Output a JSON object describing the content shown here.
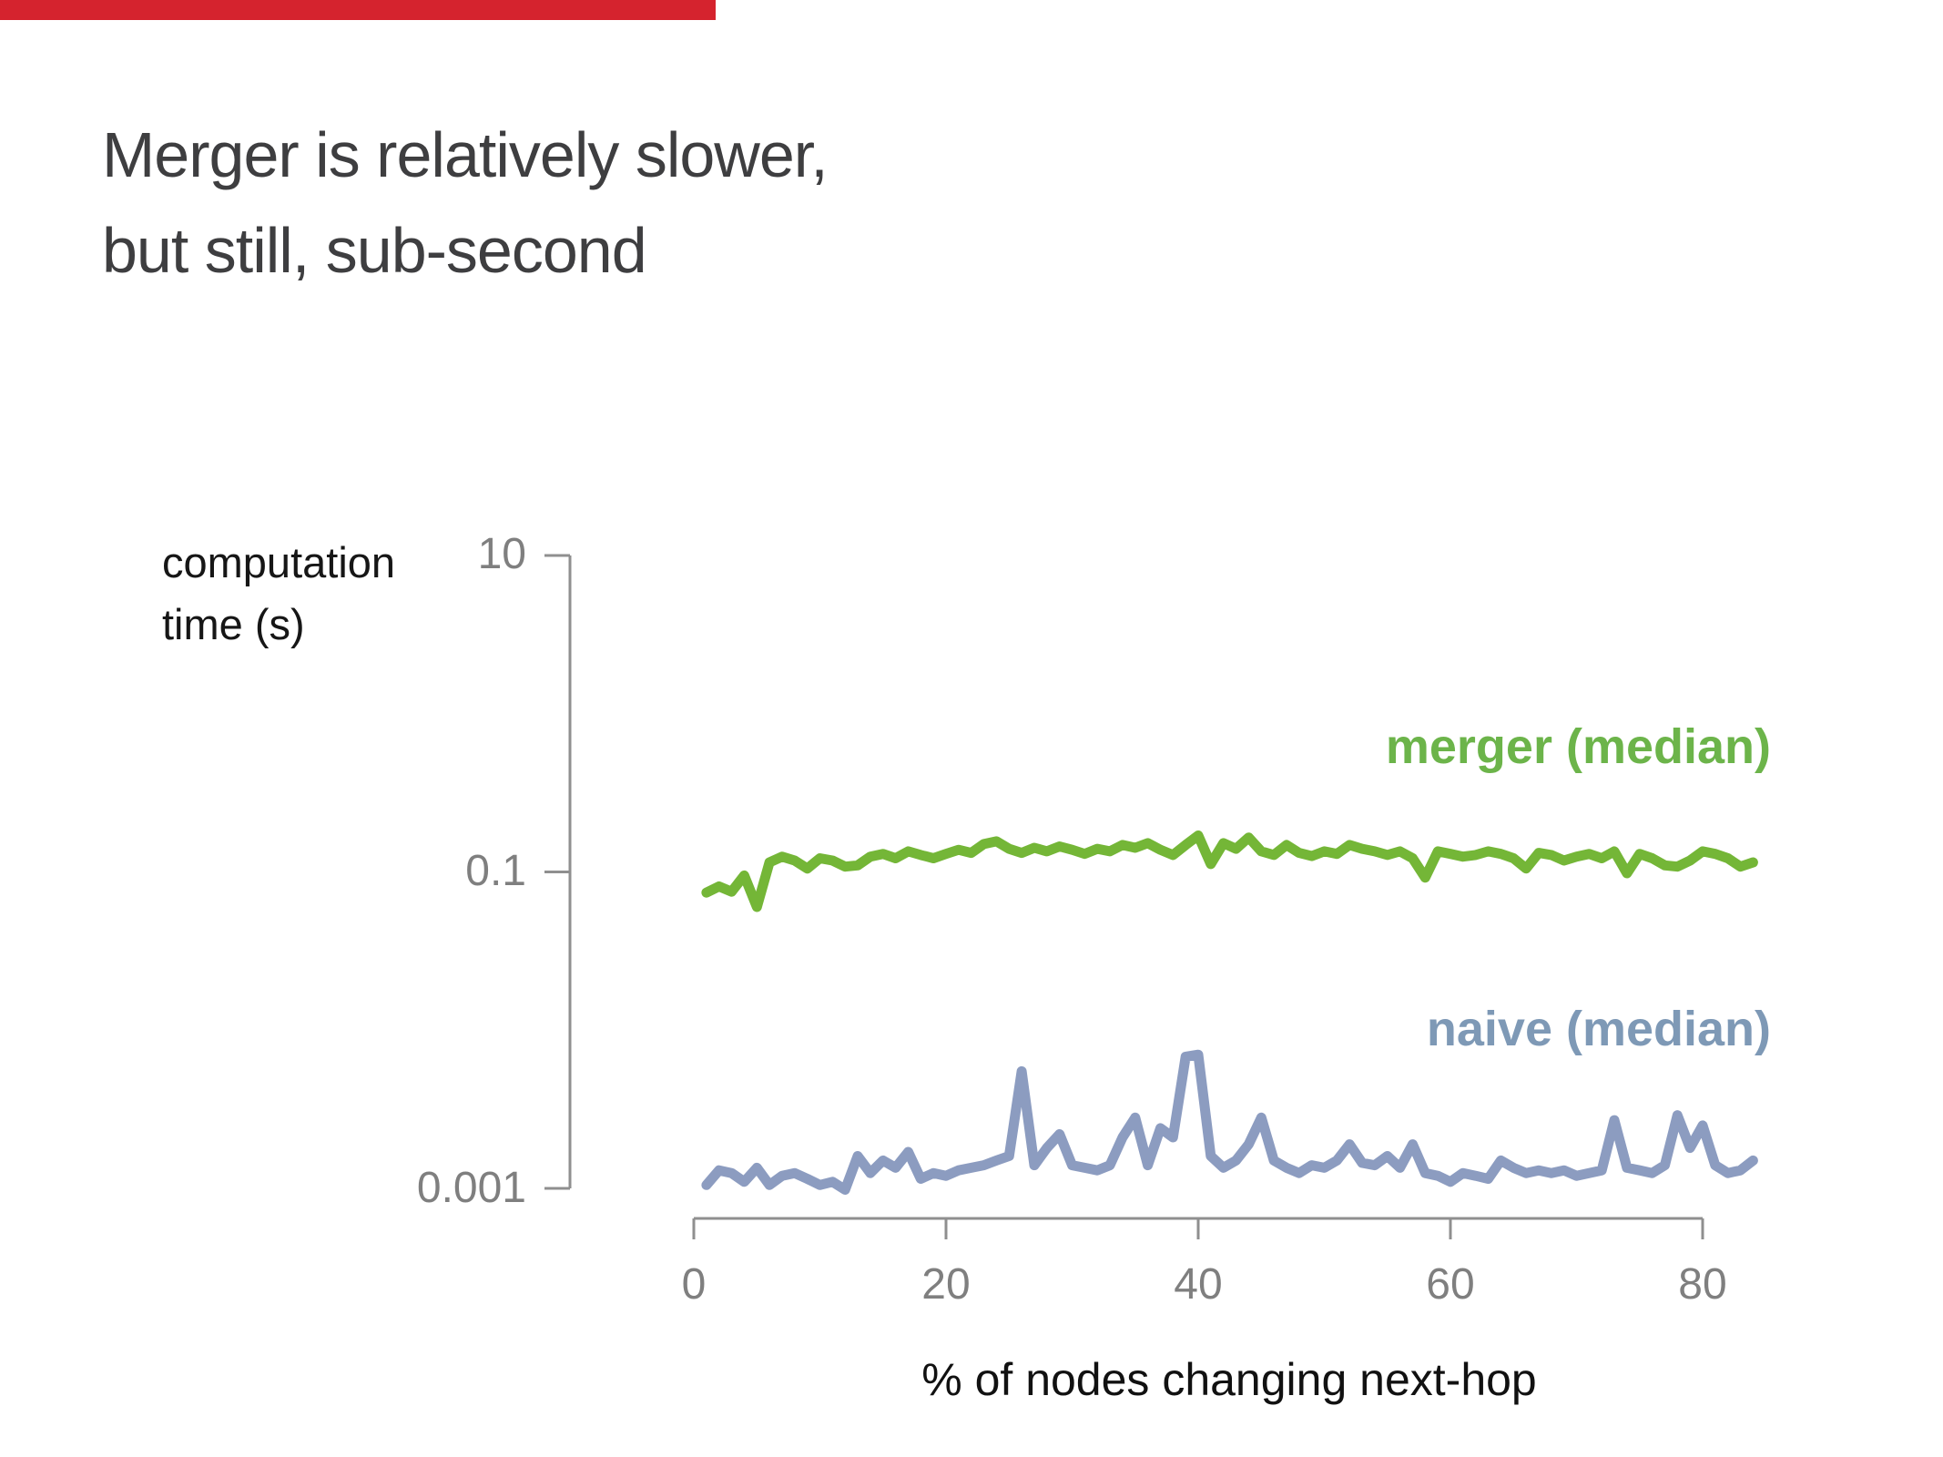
{
  "slide": {
    "title_line1": "Merger is relatively slower,",
    "title_line2": "but still, sub-second",
    "progress_bar_color": "#d5232e"
  },
  "colors": {
    "background": "#ffffff",
    "title_text": "#3e3e40",
    "axis_gray": "#8f8f8f",
    "tick_label_gray": "#7f7f7f",
    "merger_green": "#74b637",
    "merger_label_green": "#6cb44a",
    "naive_blue": "#8c9cc0",
    "naive_label_blue": "#7e99b6"
  },
  "chart_data": {
    "type": "line",
    "title": "",
    "xlabel": "% of nodes changing next-hop",
    "ylabel_line1": "computation",
    "ylabel_line2": "time (s)",
    "yscale": "log",
    "grid": false,
    "legend_position": "inline-right-above-each-line",
    "xlim": [
      0,
      80
    ],
    "ylim": [
      0.001,
      10
    ],
    "xticks": [
      0,
      20,
      40,
      60,
      80
    ],
    "xtick_labels": [
      "0",
      "20",
      "40",
      "60",
      "80"
    ],
    "yticks": [
      10,
      0.1,
      0.001
    ],
    "ytick_labels": [
      "10",
      "0.1",
      "0.001"
    ],
    "x": [
      1,
      2,
      3,
      4,
      5,
      6,
      7,
      8,
      9,
      10,
      11,
      12,
      13,
      14,
      15,
      16,
      17,
      18,
      19,
      20,
      21,
      22,
      23,
      24,
      25,
      26,
      27,
      28,
      29,
      30,
      31,
      32,
      33,
      34,
      35,
      36,
      37,
      38,
      39,
      40,
      41,
      42,
      43,
      44,
      45,
      46,
      47,
      48,
      49,
      50,
      51,
      52,
      53,
      54,
      55,
      56,
      57,
      58,
      59,
      60,
      61,
      62,
      63,
      64,
      65,
      66,
      67,
      68,
      69,
      70,
      71,
      72,
      73,
      74,
      75,
      76,
      77,
      78,
      79,
      80,
      81,
      82,
      83,
      84
    ],
    "series": [
      {
        "name": "merger (median)",
        "color": "#74b637",
        "values": [
          0.074,
          0.081,
          0.075,
          0.095,
          0.06,
          0.115,
          0.125,
          0.118,
          0.105,
          0.122,
          0.118,
          0.108,
          0.11,
          0.125,
          0.13,
          0.122,
          0.135,
          0.128,
          0.122,
          0.13,
          0.138,
          0.132,
          0.15,
          0.156,
          0.14,
          0.132,
          0.142,
          0.135,
          0.145,
          0.138,
          0.13,
          0.14,
          0.135,
          0.148,
          0.142,
          0.152,
          0.138,
          0.128,
          0.148,
          0.17,
          0.112,
          0.152,
          0.14,
          0.165,
          0.135,
          0.128,
          0.148,
          0.132,
          0.126,
          0.135,
          0.13,
          0.148,
          0.14,
          0.135,
          0.128,
          0.135,
          0.122,
          0.092,
          0.135,
          0.13,
          0.125,
          0.128,
          0.135,
          0.13,
          0.122,
          0.105,
          0.132,
          0.128,
          0.118,
          0.125,
          0.13,
          0.122,
          0.135,
          0.098,
          0.13,
          0.122,
          0.11,
          0.108,
          0.118,
          0.135,
          0.13,
          0.122,
          0.108,
          0.115
        ]
      },
      {
        "name": "naive (median)",
        "color": "#8c9cc0",
        "values": [
          0.00105,
          0.0013,
          0.00125,
          0.0011,
          0.00135,
          0.00105,
          0.0012,
          0.00125,
          0.00115,
          0.00105,
          0.0011,
          0.00098,
          0.0016,
          0.00125,
          0.0015,
          0.00135,
          0.0017,
          0.00115,
          0.00125,
          0.0012,
          0.0013,
          0.00135,
          0.0014,
          0.0015,
          0.0016,
          0.0055,
          0.0014,
          0.0018,
          0.0022,
          0.0014,
          0.00135,
          0.0013,
          0.0014,
          0.0021,
          0.0028,
          0.0014,
          0.0024,
          0.0021,
          0.0068,
          0.007,
          0.0016,
          0.00135,
          0.0015,
          0.0019,
          0.0028,
          0.0015,
          0.00135,
          0.00125,
          0.0014,
          0.00135,
          0.0015,
          0.0019,
          0.00145,
          0.0014,
          0.0016,
          0.00135,
          0.0019,
          0.00125,
          0.0012,
          0.0011,
          0.00125,
          0.0012,
          0.00115,
          0.0015,
          0.00135,
          0.00125,
          0.0013,
          0.00125,
          0.0013,
          0.0012,
          0.00125,
          0.0013,
          0.0027,
          0.00135,
          0.0013,
          0.00125,
          0.0014,
          0.0029,
          0.0018,
          0.0025,
          0.0014,
          0.00125,
          0.0013,
          0.0015
        ]
      }
    ]
  }
}
